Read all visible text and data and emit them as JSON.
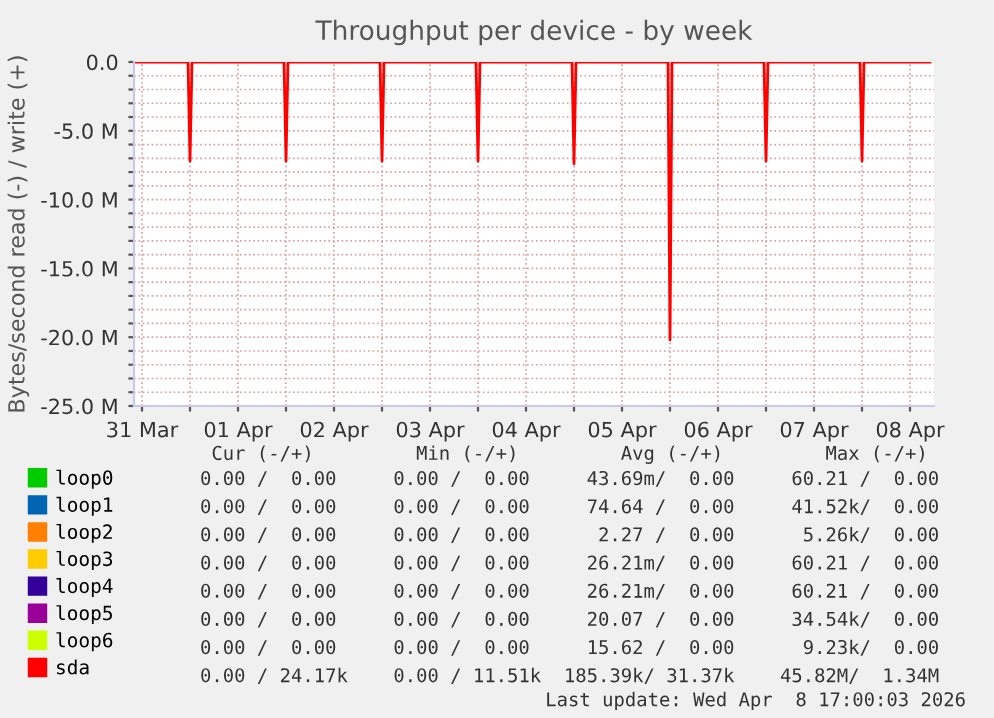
{
  "chart_data": {
    "type": "line",
    "title": "Throughput per device - by week",
    "ylabel": "Bytes/second read (-) / write (+)",
    "xlim": [
      "2026-03-31T10:00",
      "2026-04-08T18:00"
    ],
    "xticks": [
      {
        "value": "2026-03-31T12:00",
        "label": "31 Mar"
      },
      {
        "value": "2026-04-01T12:00",
        "label": "01 Apr"
      },
      {
        "value": "2026-04-02T12:00",
        "label": "02 Apr"
      },
      {
        "value": "2026-04-03T12:00",
        "label": "03 Apr"
      },
      {
        "value": "2026-04-04T12:00",
        "label": "04 Apr"
      },
      {
        "value": "2026-04-05T12:00",
        "label": "05 Apr"
      },
      {
        "value": "2026-04-06T12:00",
        "label": "06 Apr"
      },
      {
        "value": "2026-04-07T12:00",
        "label": "07 Apr"
      },
      {
        "value": "2026-04-08T12:00",
        "label": "08 Apr"
      },
      {
        "value": "2026-04-01T00:00",
        "label": null
      },
      {
        "value": "2026-04-02T00:00",
        "label": null
      },
      {
        "value": "2026-04-03T00:00",
        "label": null
      },
      {
        "value": "2026-04-04T00:00",
        "label": null
      },
      {
        "value": "2026-04-05T00:00",
        "label": null
      },
      {
        "value": "2026-04-06T00:00",
        "label": null
      },
      {
        "value": "2026-04-07T00:00",
        "label": null
      },
      {
        "value": "2026-04-08T00:00",
        "label": null
      }
    ],
    "ylim": [
      -25000000,
      0
    ],
    "yticks": [
      {
        "value": 0,
        "label": "0.0"
      },
      {
        "value": -5000000,
        "label": "-5.0 M"
      },
      {
        "value": -10000000,
        "label": "-10.0 M"
      },
      {
        "value": -15000000,
        "label": "-15.0 M"
      },
      {
        "value": -20000000,
        "label": "-20.0 M"
      },
      {
        "value": -25000000,
        "label": "-25.0 M"
      },
      {
        "value": -1000000,
        "label": null
      },
      {
        "value": -2000000,
        "label": null
      },
      {
        "value": -3000000,
        "label": null
      },
      {
        "value": -4000000,
        "label": null
      },
      {
        "value": -6000000,
        "label": null
      },
      {
        "value": -7000000,
        "label": null
      },
      {
        "value": -8000000,
        "label": null
      },
      {
        "value": -9000000,
        "label": null
      },
      {
        "value": -11000000,
        "label": null
      },
      {
        "value": -12000000,
        "label": null
      },
      {
        "value": -13000000,
        "label": null
      },
      {
        "value": -14000000,
        "label": null
      },
      {
        "value": -16000000,
        "label": null
      },
      {
        "value": -17000000,
        "label": null
      },
      {
        "value": -18000000,
        "label": null
      },
      {
        "value": -19000000,
        "label": null
      },
      {
        "value": -21000000,
        "label": null
      },
      {
        "value": -22000000,
        "label": null
      },
      {
        "value": -23000000,
        "label": null
      },
      {
        "value": -24000000,
        "label": null
      }
    ],
    "grid": true,
    "legend": "bottom",
    "series": [
      {
        "name": "loop0",
        "color": "#00cc00"
      },
      {
        "name": "loop1",
        "color": "#0066b3"
      },
      {
        "name": "loop2",
        "color": "#ff8000"
      },
      {
        "name": "loop3",
        "color": "#ffcc00"
      },
      {
        "name": "loop4",
        "color": "#330099"
      },
      {
        "name": "loop5",
        "color": "#990099"
      },
      {
        "name": "loop6",
        "color": "#ccff00"
      },
      {
        "name": "sda",
        "color": "#ff0000",
        "x": [
          "2026-03-31T10:00",
          "2026-03-31T23:30",
          "2026-04-01T00:00",
          "2026-04-01T00:30",
          "2026-04-01T23:30",
          "2026-04-02T00:00",
          "2026-04-02T00:30",
          "2026-04-02T23:30",
          "2026-04-03T00:00",
          "2026-04-03T00:30",
          "2026-04-03T23:30",
          "2026-04-04T00:00",
          "2026-04-04T00:30",
          "2026-04-04T23:30",
          "2026-04-05T00:00",
          "2026-04-05T00:30",
          "2026-04-05T23:30",
          "2026-04-06T00:00",
          "2026-04-06T00:30",
          "2026-04-06T23:30",
          "2026-04-07T00:00",
          "2026-04-07T00:30",
          "2026-04-07T23:30",
          "2026-04-08T00:00",
          "2026-04-08T00:30",
          "2026-04-08T17:00"
        ],
        "values": [
          0,
          0,
          -7200000,
          0,
          0,
          -7200000,
          0,
          0,
          -7200000,
          0,
          0,
          -7200000,
          0,
          0,
          -7400000,
          0,
          0,
          -20200000,
          0,
          0,
          -7200000,
          0,
          0,
          -7200000,
          0,
          0
        ]
      }
    ],
    "annotations": [
      " Cur (-/+)         Min (-/+)         Avg (-/+)         Max (-/+)",
      "0.00 /  0.00     0.00 /  0.00     43.69m/  0.00     60.21 /  0.00",
      "0.00 /  0.00     0.00 /  0.00     74.64 /  0.00     41.52k/  0.00",
      "0.00 /  0.00     0.00 /  0.00      2.27 /  0.00      5.26k/  0.00",
      "0.00 /  0.00     0.00 /  0.00     26.21m/  0.00     60.21 /  0.00",
      "0.00 /  0.00     0.00 /  0.00     26.21m/  0.00     60.21 /  0.00",
      "0.00 /  0.00     0.00 /  0.00     20.07 /  0.00     34.54k/  0.00",
      "0.00 /  0.00     0.00 /  0.00     15.62 /  0.00      9.23k/  0.00",
      "0.00 / 24.17k    0.00 / 11.51k  185.39k/ 31.37k    45.82M/  1.34M",
      "Last update: Wed Apr  8 17:00:03 2026"
    ]
  }
}
